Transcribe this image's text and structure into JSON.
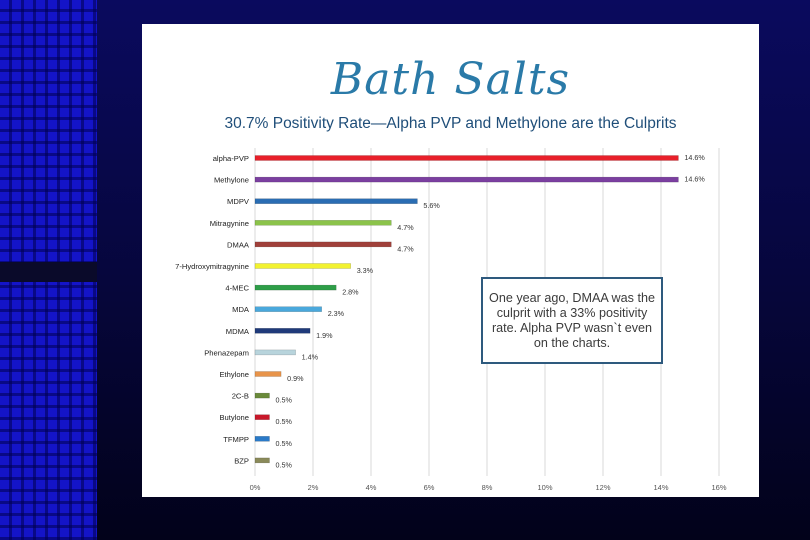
{
  "logo_title": "Bath Salts",
  "chart_data": {
    "type": "bar",
    "orientation": "horizontal",
    "title": "30.7% Positivity Rate—Alpha PVP and Methylone are the Culprits",
    "categories": [
      "alpha-PVP",
      "Methylone",
      "MDPV",
      "Mitragynine",
      "DMAA",
      "7-Hydroxymitragynine",
      "4-MEC",
      "MDA",
      "MDMA",
      "Phenazepam",
      "Ethylone",
      "2C-B",
      "Butylone",
      "TFMPP",
      "BZP"
    ],
    "values": [
      14.6,
      14.6,
      5.6,
      4.7,
      4.7,
      3.3,
      2.8,
      2.3,
      1.9,
      1.4,
      0.9,
      0.5,
      0.5,
      0.5,
      0.5
    ],
    "value_labels": [
      "14.6%",
      "14.6%",
      "5.6%",
      "4.7%",
      "4.7%",
      "3.3%",
      "2.8%",
      "2.3%",
      "1.9%",
      "1.4%",
      "0.9%",
      "0.5%",
      "0.5%",
      "0.5%",
      "0.5%"
    ],
    "colors": [
      "#e8202a",
      "#7b3fa0",
      "#2a6db3",
      "#8bc34a",
      "#a0403a",
      "#f2f230",
      "#2e9e48",
      "#4aa8dc",
      "#1f3a7a",
      "#b8d4dc",
      "#e8944a",
      "#6a8a3a",
      "#c8182a",
      "#2a7ac8",
      "#8a8a5a"
    ],
    "xlim": [
      0,
      16
    ],
    "x_ticks": [
      "0%",
      "2%",
      "4%",
      "6%",
      "8%",
      "10%",
      "12%",
      "14%",
      "16%"
    ],
    "grid": true,
    "annotation": "One year ago, DMAA was the culprit with a 33% positivity rate. Alpha PVP wasn`t even on the charts."
  }
}
